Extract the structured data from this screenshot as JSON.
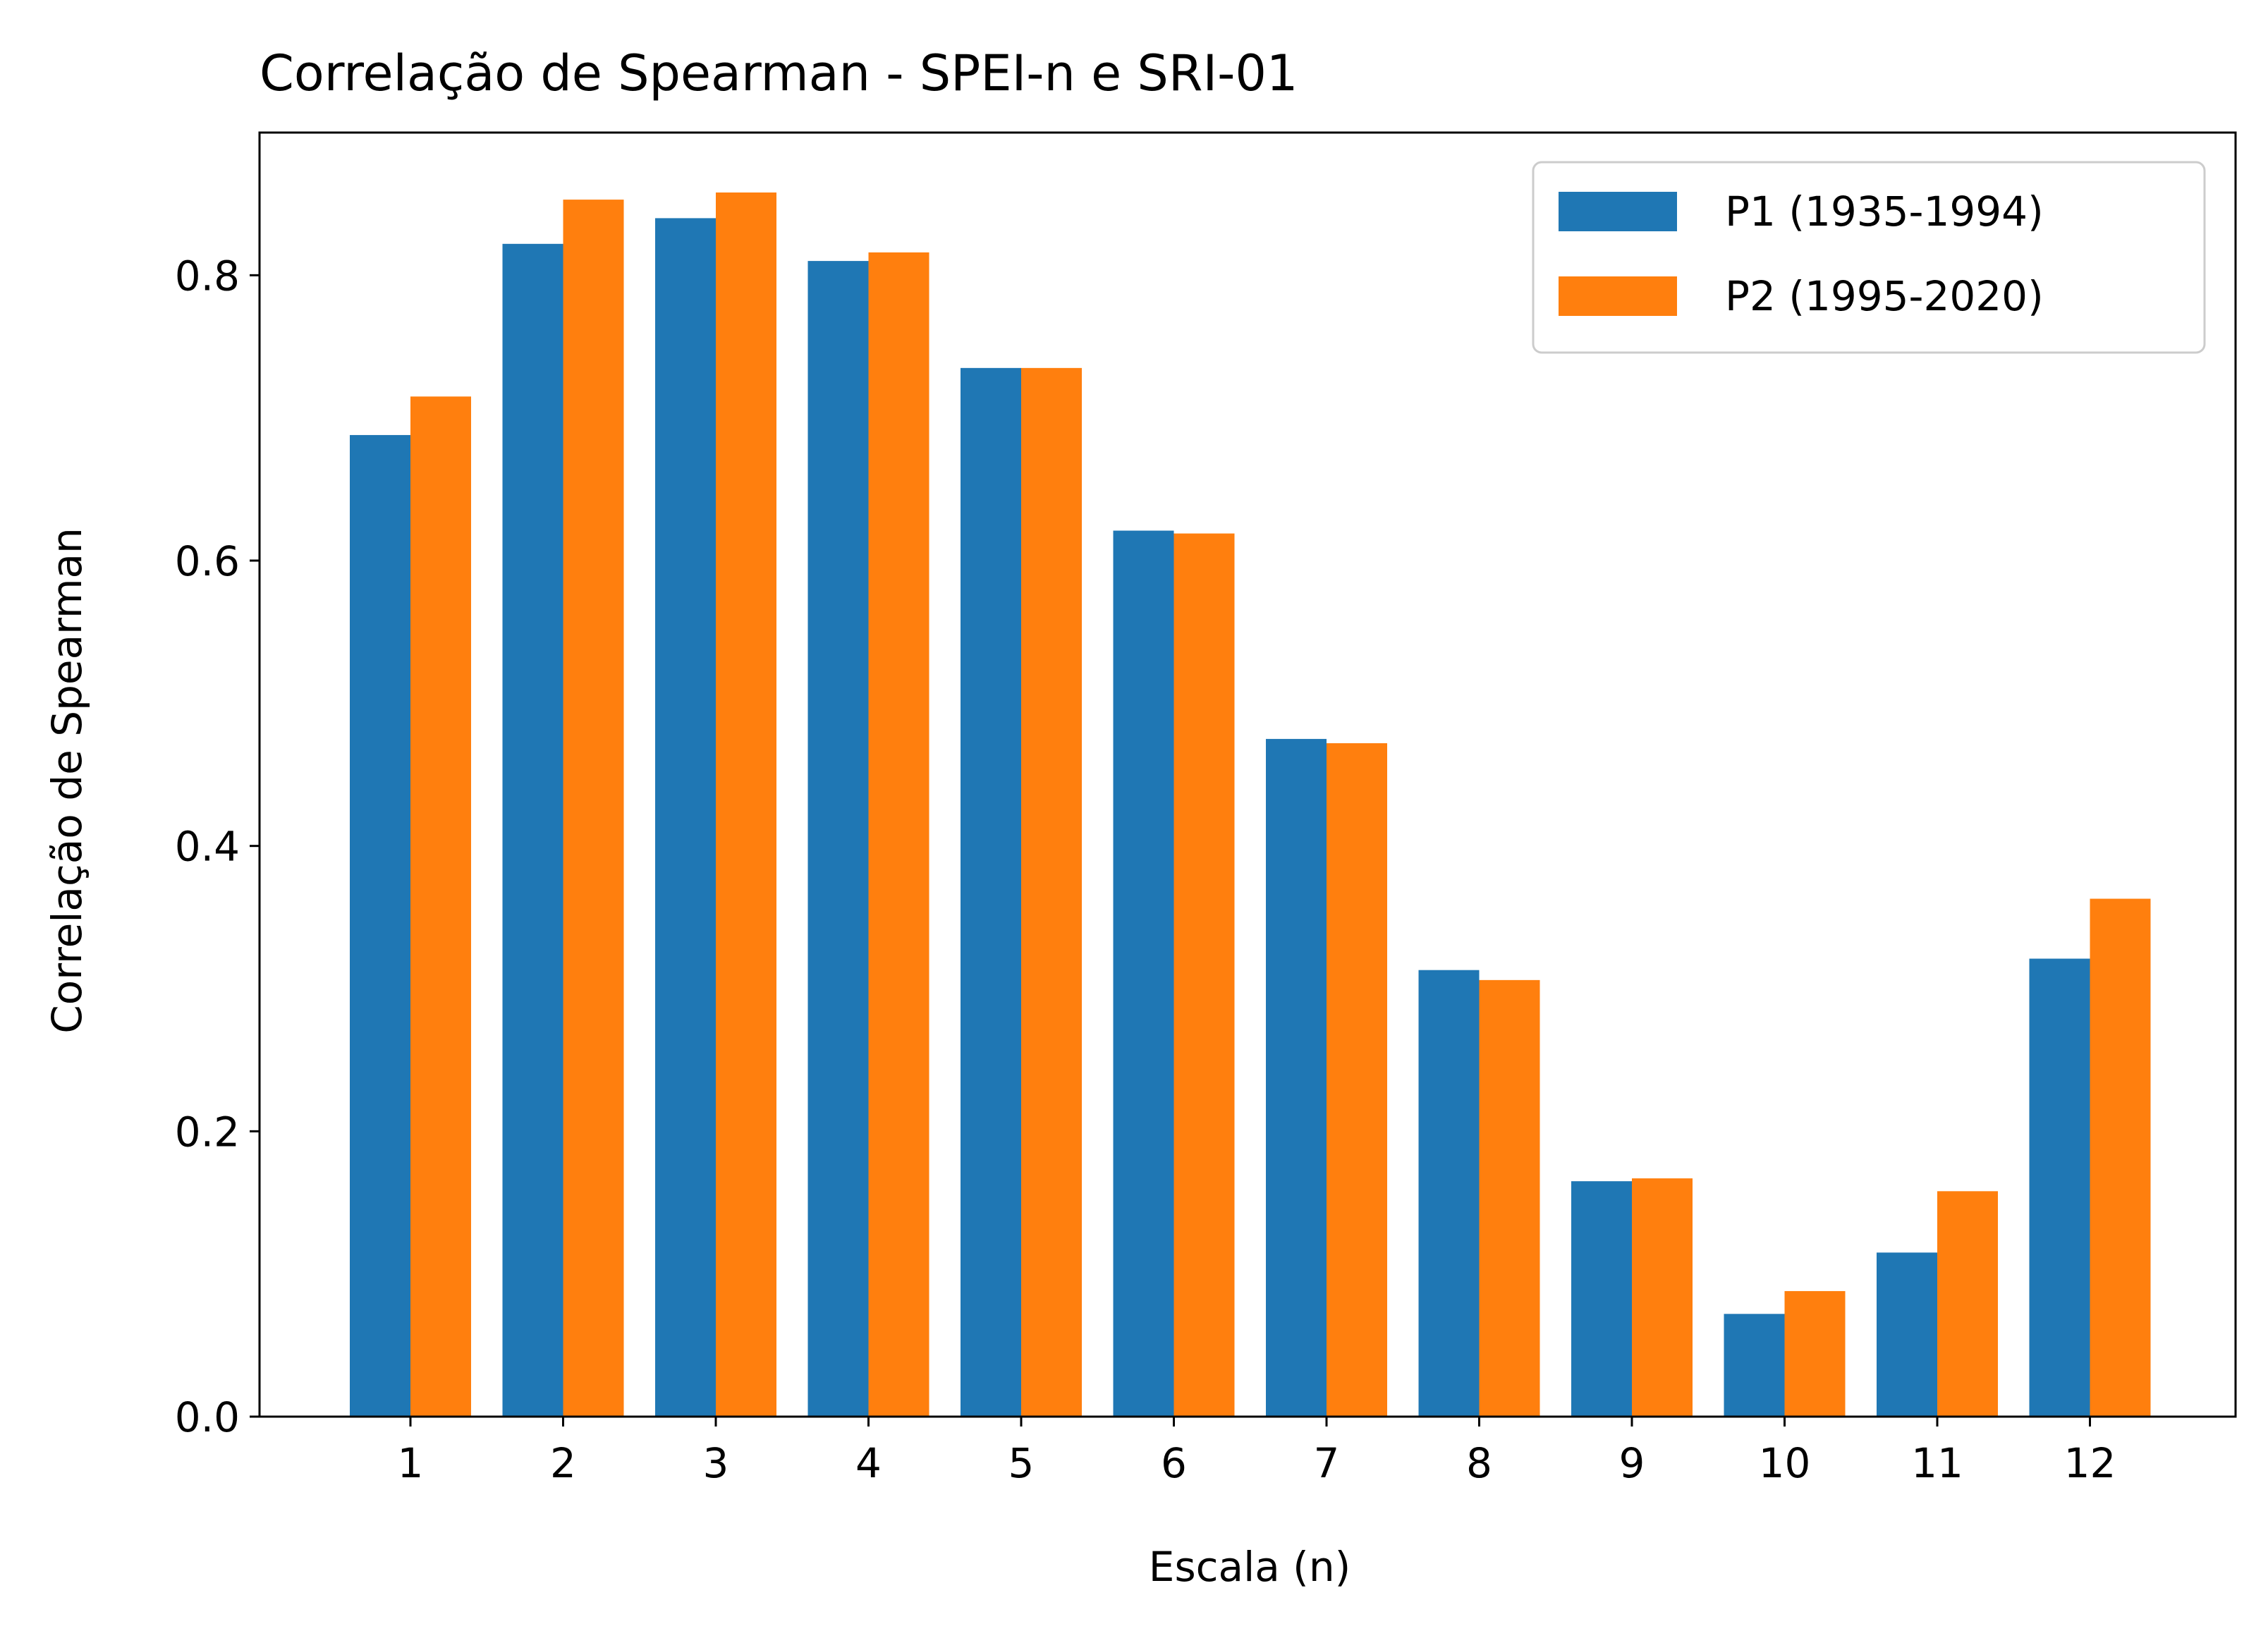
{
  "chart_data": {
    "type": "bar",
    "title": "Correlação de Spearman - SPEI-n e SRI-01",
    "xlabel": "Escala (n)",
    "ylabel": "Correlação de Spearman",
    "categories": [
      "1",
      "2",
      "3",
      "4",
      "5",
      "6",
      "7",
      "8",
      "9",
      "10",
      "11",
      "12"
    ],
    "series": [
      {
        "name": "P1 (1935-1994)",
        "color": "#1f77b4",
        "values": [
          0.688,
          0.822,
          0.84,
          0.81,
          0.735,
          0.621,
          0.475,
          0.313,
          0.165,
          0.072,
          0.115,
          0.321
        ]
      },
      {
        "name": "P2 (1995-2020)",
        "color": "#ff7f0e",
        "values": [
          0.715,
          0.853,
          0.858,
          0.816,
          0.735,
          0.619,
          0.472,
          0.306,
          0.167,
          0.088,
          0.158,
          0.363
        ]
      }
    ],
    "ylim": [
      0,
      0.9
    ],
    "yticks": [
      "0.0",
      "0.2",
      "0.4",
      "0.6",
      "0.8"
    ],
    "legend_position": "top-right",
    "grid": false
  }
}
